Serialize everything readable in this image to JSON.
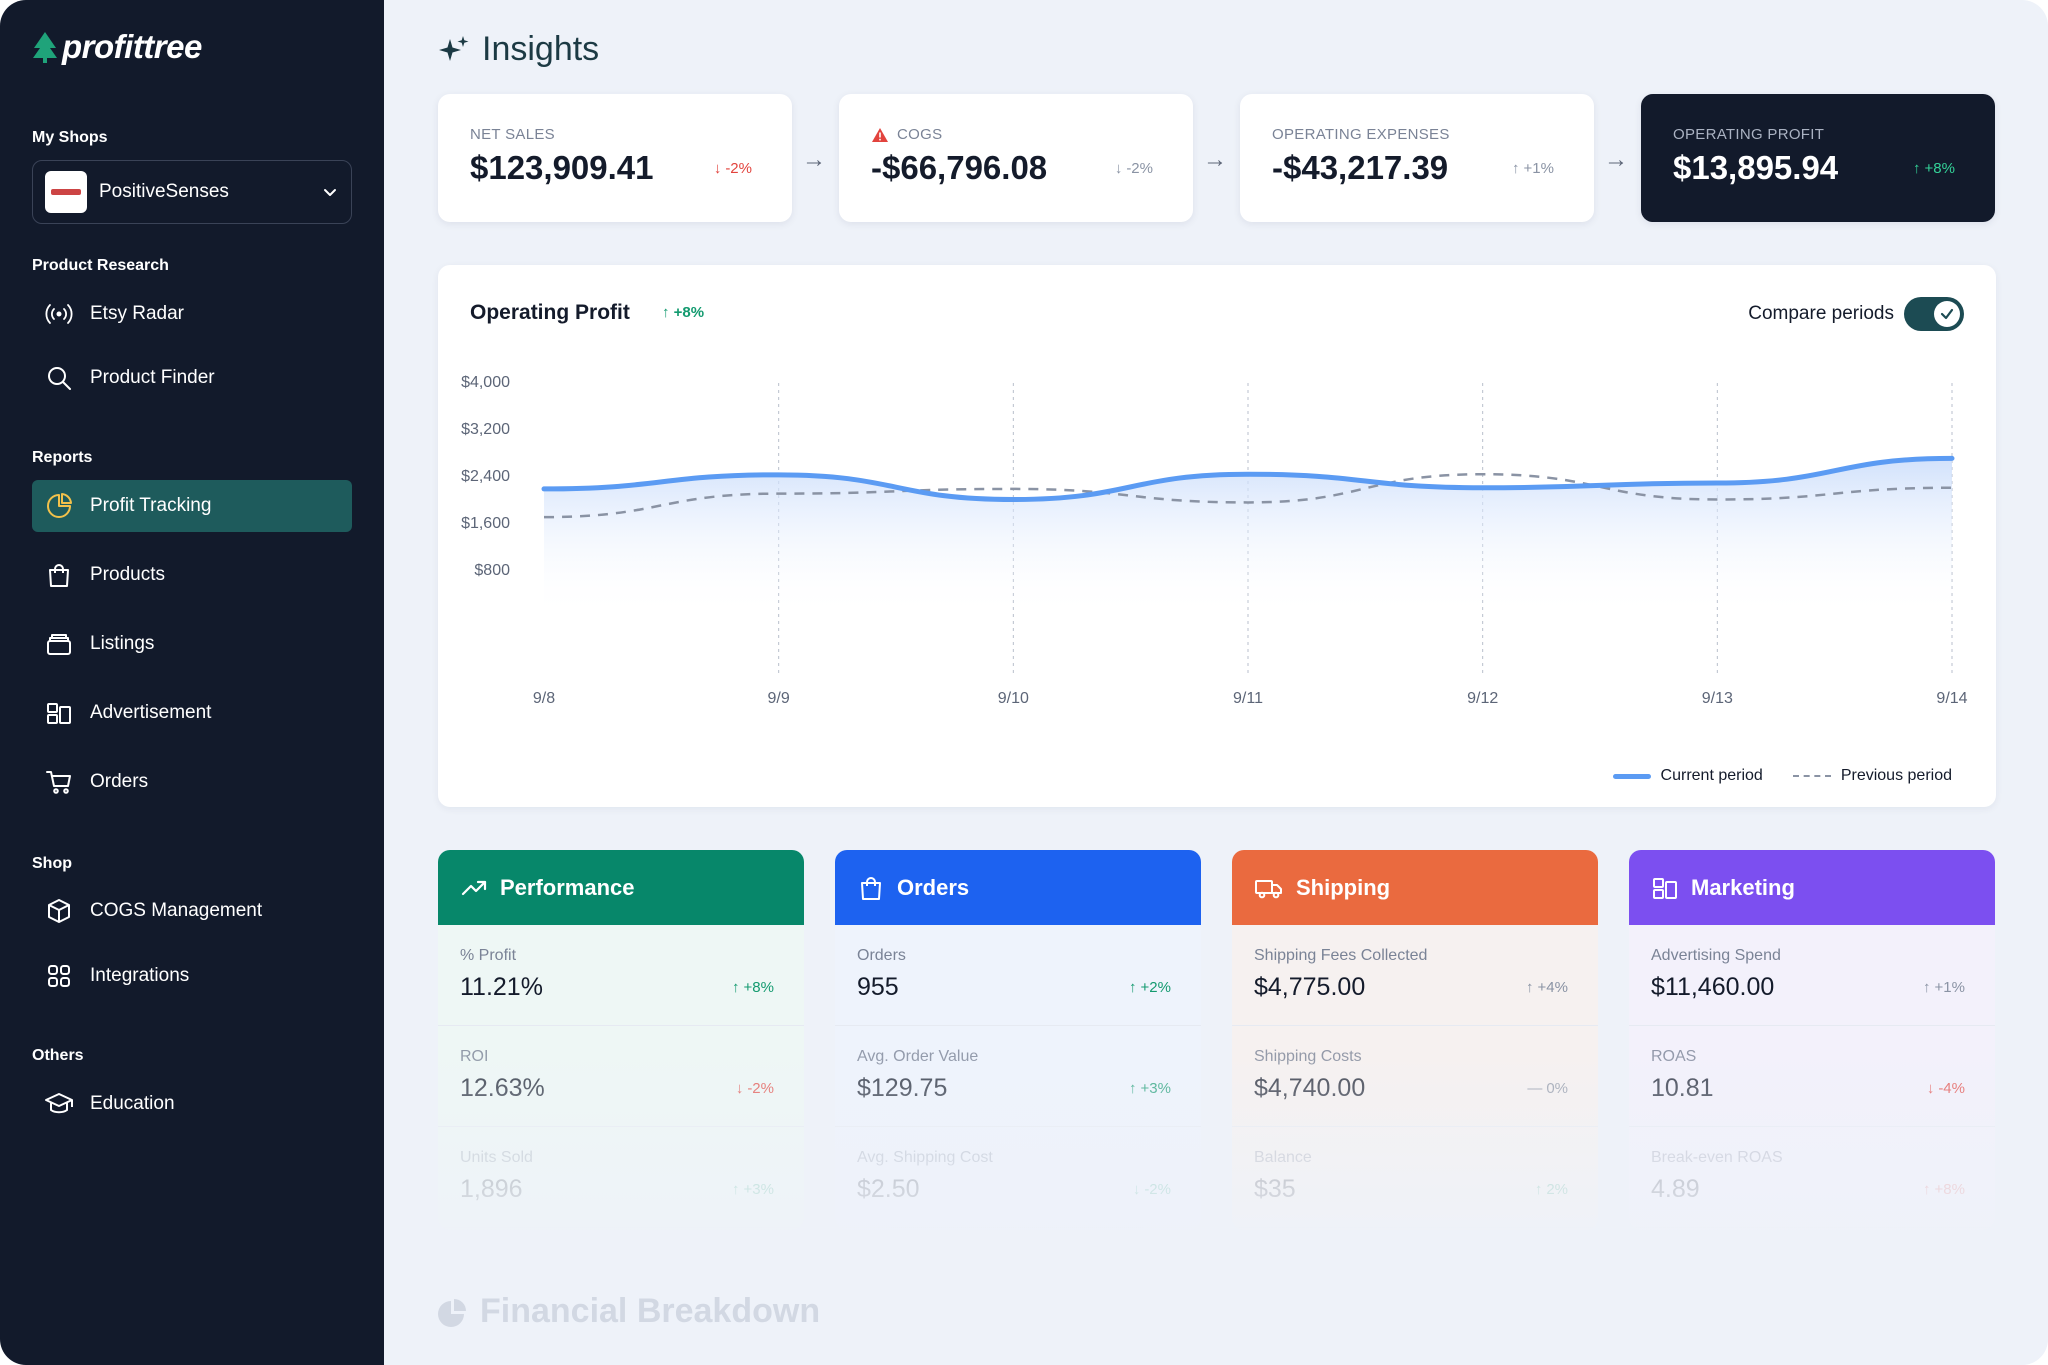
{
  "brand": {
    "name": "profittree"
  },
  "sidebar": {
    "my_shops_title": "My Shops",
    "shop": {
      "name": "PositiveSenses"
    },
    "product_research_title": "Product Research",
    "product_research": [
      {
        "label": "Etsy Radar",
        "icon": "radar-icon"
      },
      {
        "label": "Product Finder",
        "icon": "search-icon"
      }
    ],
    "reports_title": "Reports",
    "reports": [
      {
        "label": "Profit Tracking",
        "icon": "pie-chart-icon",
        "active": true
      },
      {
        "label": "Products",
        "icon": "bag-icon"
      },
      {
        "label": "Listings",
        "icon": "listings-icon"
      },
      {
        "label": "Advertisement",
        "icon": "advertisement-icon"
      },
      {
        "label": "Orders",
        "icon": "cart-icon"
      }
    ],
    "shop_title": "Shop",
    "shop_items": [
      {
        "label": "COGS Management",
        "icon": "cube-icon"
      },
      {
        "label": "Integrations",
        "icon": "grid-icon"
      }
    ],
    "others_title": "Others",
    "others": [
      {
        "label": "Education",
        "icon": "graduation-cap-icon"
      }
    ]
  },
  "header": {
    "title": "Insights",
    "icon": "sparkle-icon"
  },
  "kpis": [
    {
      "label": "NET SALES",
      "value": "$123,909.41",
      "delta": "-2%",
      "direction": "down",
      "tone": "red"
    },
    {
      "label": "COGS",
      "value": "-$66,796.08",
      "delta": "-2%",
      "direction": "down",
      "tone": "gray",
      "warning": true
    },
    {
      "label": "OPERATING EXPENSES",
      "value": "-$43,217.39",
      "delta": "+1%",
      "direction": "up",
      "tone": "gray"
    },
    {
      "label": "OPERATING PROFIT",
      "value": "$13,895.94",
      "delta": "+8%",
      "direction": "up",
      "tone": "lgreen",
      "dark": true
    }
  ],
  "chart_card": {
    "title": "Operating Profit",
    "delta": "+8%",
    "compare_label": "Compare periods",
    "compare_enabled": true,
    "legend_current": "Current period",
    "legend_previous": "Previous period"
  },
  "chart_data": {
    "type": "line",
    "x": [
      "9/8",
      "9/9",
      "9/10",
      "9/11",
      "9/12",
      "9/13",
      "9/14"
    ],
    "y_ticks": [
      "$4,000",
      "$3,200",
      "$2,400",
      "$1,600",
      "$800"
    ],
    "ylim": [
      0,
      4000
    ],
    "series": [
      {
        "name": "Current period",
        "values": [
          2180,
          2420,
          2000,
          2430,
          2200,
          2280,
          2700
        ],
        "color": "#5b9bf3",
        "style": "solid",
        "fill": true
      },
      {
        "name": "Previous period",
        "values": [
          1700,
          2100,
          2180,
          1950,
          2430,
          2000,
          2200
        ],
        "color": "#8a93a4",
        "style": "dashed"
      }
    ],
    "grid": "vertical-dotted"
  },
  "metric_cards": [
    {
      "title": "Performance",
      "icon": "trend-up-icon",
      "color": "#07876a",
      "bg": "#eef7f5",
      "rows": [
        {
          "label": "% Profit",
          "value": "11.21%",
          "delta": "+8%",
          "direction": "up",
          "tone": "green"
        },
        {
          "label": "ROI",
          "value": "12.63%",
          "delta": "-2%",
          "direction": "down",
          "tone": "red"
        },
        {
          "label": "Units Sold",
          "value": "1,896",
          "delta": "+3%",
          "direction": "up",
          "tone": "green"
        }
      ]
    },
    {
      "title": "Orders",
      "icon": "bag-icon",
      "color": "#1d62f0",
      "bg": "#eef3fc",
      "rows": [
        {
          "label": "Orders",
          "value": "955",
          "delta": "+2%",
          "direction": "up",
          "tone": "green"
        },
        {
          "label": "Avg. Order Value",
          "value": "$129.75",
          "delta": "+3%",
          "direction": "up",
          "tone": "green"
        },
        {
          "label": "Avg. Shipping Cost",
          "value": "$2.50",
          "delta": "-2%",
          "direction": "down",
          "tone": "green"
        }
      ]
    },
    {
      "title": "Shipping",
      "icon": "truck-icon",
      "color": "#ea6a3f",
      "bg": "#f6f1f0",
      "rows": [
        {
          "label": "Shipping Fees Collected",
          "value": "$4,775.00",
          "delta": "+4%",
          "direction": "up",
          "tone": "gray"
        },
        {
          "label": "Shipping Costs",
          "value": "$4,740.00",
          "delta": "0%",
          "direction": "flat",
          "tone": "gray"
        },
        {
          "label": "Balance",
          "value": "$35",
          "delta": "2%",
          "direction": "up",
          "tone": "green"
        }
      ]
    },
    {
      "title": "Marketing",
      "icon": "advertisement-icon",
      "color": "#7c4ff0",
      "bg": "#f3f1fb",
      "rows": [
        {
          "label": "Advertising Spend",
          "value": "$11,460.00",
          "delta": "+1%",
          "direction": "up",
          "tone": "gray"
        },
        {
          "label": "ROAS",
          "value": "10.81",
          "delta": "-4%",
          "direction": "down",
          "tone": "red"
        },
        {
          "label": "Break-even ROAS",
          "value": "4.89",
          "delta": "+8%",
          "direction": "up",
          "tone": "red"
        }
      ]
    }
  ],
  "breakdown": {
    "title": "Financial Breakdown"
  }
}
